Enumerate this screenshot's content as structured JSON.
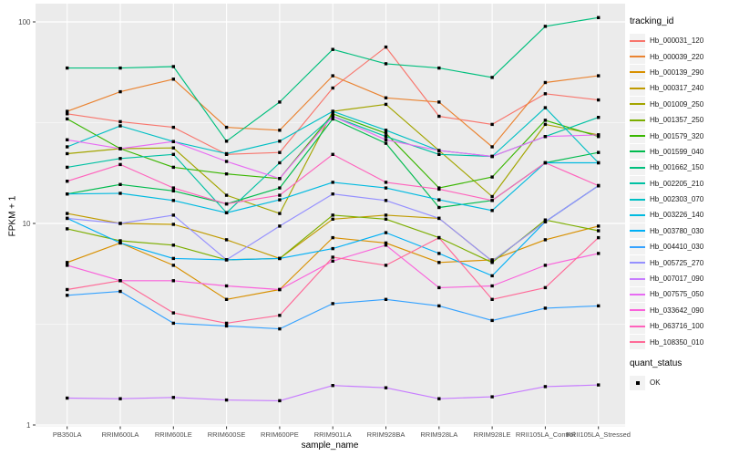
{
  "chart_data": {
    "type": "line",
    "title": "",
    "xlabel": "sample_name",
    "ylabel": "FPKM + 1",
    "y_scale": "log10",
    "y_ticks": [
      100,
      10,
      1
    ],
    "y_minor_ticks": [
      31.623,
      3.1623
    ],
    "ylim": [
      0.99,
      123
    ],
    "grid": true,
    "legend_position": "right",
    "legend_title": "tracking_id",
    "point_marker": "black-square",
    "categories": [
      "PB350LA",
      "RRIM600LA",
      "RRIM600LE",
      "RRIM600SE",
      "RRIM600PE",
      "RRIM901LA",
      "RRIM928BA",
      "RRIM928LA",
      "RRIM928LE",
      "RRII105LA_Control",
      "RRII105LA_Stressed"
    ],
    "series": [
      {
        "name": "Hb_000031_120",
        "color": "#F8766D",
        "values": [
          35,
          32,
          30,
          22,
          22.5,
          47,
          75,
          34,
          31,
          44,
          41
        ]
      },
      {
        "name": "Hb_000039_220",
        "color": "#EA8331",
        "values": [
          36,
          45,
          52,
          30,
          29,
          54,
          42,
          40,
          24,
          50,
          54
        ]
      },
      {
        "name": "Hb_000139_290",
        "color": "#D89000",
        "values": [
          6.4,
          8.0,
          6.2,
          4.2,
          4.7,
          8.5,
          8.0,
          6.4,
          6.6,
          8.3,
          9.7
        ]
      },
      {
        "name": "Hb_000317_240",
        "color": "#C09B00",
        "values": [
          11.2,
          10.0,
          9.9,
          8.3,
          6.7,
          10.5,
          11.0,
          10.6,
          6.5,
          10.2,
          15.4
        ]
      },
      {
        "name": "Hb_001009_250",
        "color": "#A3A500",
        "values": [
          22.2,
          23.5,
          23.7,
          13.8,
          11.2,
          36,
          39,
          23,
          13.6,
          31,
          27.5
        ]
      },
      {
        "name": "Hb_001357_250",
        "color": "#7CAE00",
        "values": [
          9.4,
          8.2,
          7.8,
          6.6,
          6.7,
          11,
          10.5,
          8.5,
          6.4,
          10.4,
          9.2
        ]
      },
      {
        "name": "Hb_001579_320",
        "color": "#39B600",
        "values": [
          33,
          23.5,
          19,
          17.6,
          16.7,
          35,
          28,
          15,
          17,
          32.5,
          27
        ]
      },
      {
        "name": "Hb_001599_040",
        "color": "#00BB4E",
        "values": [
          14,
          15.6,
          14.5,
          12.5,
          15,
          33,
          25,
          12,
          13,
          20,
          22.5
        ]
      },
      {
        "name": "Hb_001662_150",
        "color": "#00BF7D",
        "values": [
          59,
          59,
          60,
          25.6,
          40,
          73,
          62,
          59,
          53,
          95,
          105
        ]
      },
      {
        "name": "Hb_002205_210",
        "color": "#00C1A3",
        "values": [
          19,
          21,
          22,
          11.3,
          20,
          34,
          27,
          22,
          21.5,
          27,
          33.6
        ]
      },
      {
        "name": "Hb_002303_070",
        "color": "#00BFC4",
        "values": [
          24,
          30.5,
          25.5,
          22.2,
          25.6,
          36,
          29,
          23,
          21.5,
          37.5,
          20
        ]
      },
      {
        "name": "Hb_003226_140",
        "color": "#00BAE0",
        "values": [
          14,
          14.1,
          13,
          11.3,
          13.1,
          16,
          15,
          13.1,
          11.6,
          20,
          20
        ]
      },
      {
        "name": "Hb_003780_030",
        "color": "#00B0F6",
        "values": [
          10.6,
          8.0,
          6.7,
          6.6,
          6.7,
          7.5,
          9.0,
          7.1,
          5.5,
          10.2,
          15.4
        ]
      },
      {
        "name": "Hb_004410_030",
        "color": "#35A2FF",
        "values": [
          4.4,
          4.6,
          3.2,
          3.1,
          3.0,
          4.0,
          4.2,
          3.9,
          3.3,
          3.8,
          3.9
        ]
      },
      {
        "name": "Hb_005725_270",
        "color": "#9590FF",
        "values": [
          10.6,
          10.0,
          11.0,
          6.6,
          9.7,
          14,
          13,
          10.6,
          6.5,
          10.2,
          15.4
        ]
      },
      {
        "name": "Hb_007017_090",
        "color": "#C77CFF",
        "values": [
          1.36,
          1.35,
          1.37,
          1.33,
          1.32,
          1.57,
          1.53,
          1.35,
          1.38,
          1.55,
          1.58
        ]
      },
      {
        "name": "Hb_007575_050",
        "color": "#E76BF3",
        "values": [
          26,
          23.5,
          25.5,
          20.3,
          16.7,
          34,
          26,
          23,
          21.5,
          27,
          27.5
        ]
      },
      {
        "name": "Hb_033642_090",
        "color": "#FA62DB",
        "values": [
          6.2,
          5.2,
          5.2,
          4.9,
          4.7,
          6.5,
          7.8,
          4.8,
          4.9,
          6.2,
          7.1
        ]
      },
      {
        "name": "Hb_063716_100",
        "color": "#FF62BC",
        "values": [
          16.2,
          19.6,
          15,
          12.5,
          13.8,
          22,
          16,
          14.8,
          13.0,
          20,
          15.4
        ]
      },
      {
        "name": "Hb_108350_010",
        "color": "#FF6A98",
        "values": [
          4.7,
          5.2,
          3.6,
          3.2,
          3.5,
          6.8,
          6.2,
          8.5,
          4.2,
          4.8,
          8.5
        ]
      }
    ],
    "quant_legend": {
      "title": "quant_status",
      "items": [
        {
          "label": "OK",
          "marker": "black-square"
        }
      ]
    }
  },
  "colors": {
    "panel_bg": "#EBEBEB",
    "grid_major": "#FFFFFF",
    "grid_minor": "#FFFFFF",
    "point": "#000000",
    "axis_text": "#4D4D4D",
    "tick_mark": "#333333",
    "legend_key_bg": "#F2F2F2"
  }
}
